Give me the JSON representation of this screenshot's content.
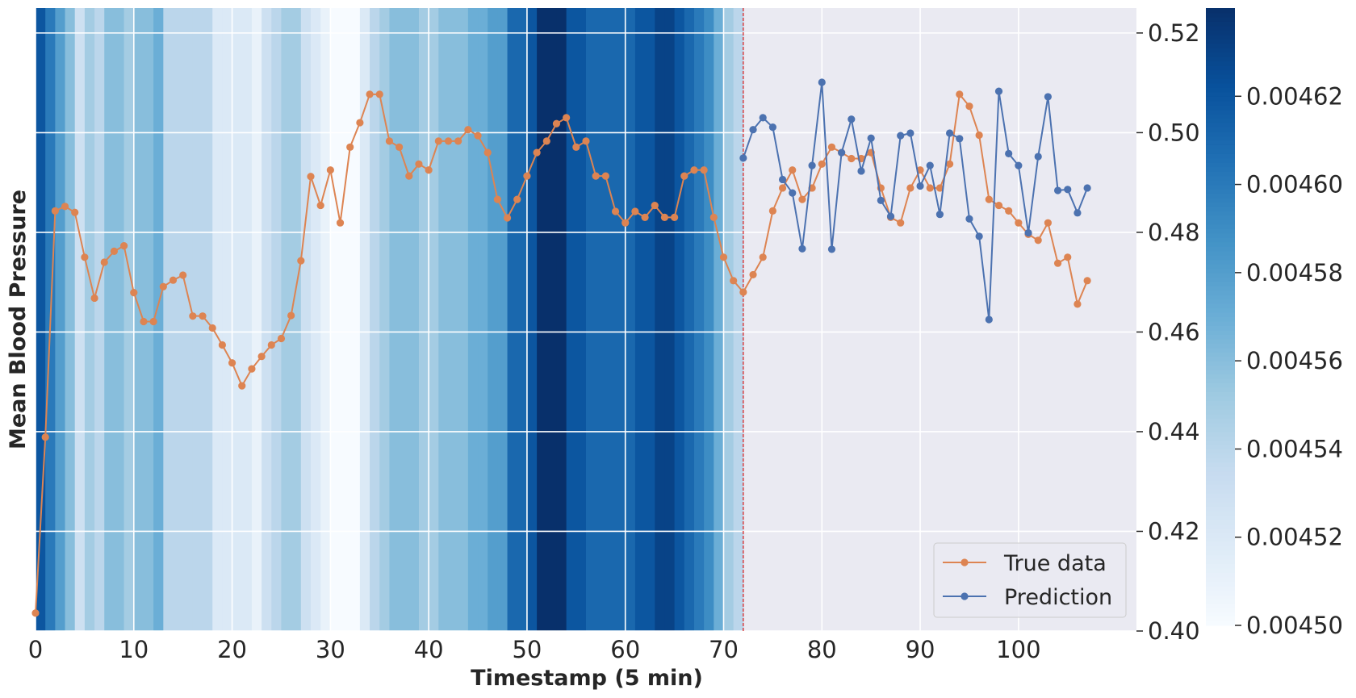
{
  "chart_data": {
    "type": "line",
    "xlabel": "Timestamp (5 min)",
    "ylabel": "Mean Blood Pressure",
    "xlim": [
      0,
      112
    ],
    "ylim": [
      0.4,
      0.525
    ],
    "xticks": [
      0,
      10,
      20,
      30,
      40,
      50,
      60,
      70,
      80,
      90,
      100
    ],
    "yticks": [
      0.4,
      0.42,
      0.44,
      0.46,
      0.48,
      0.5,
      0.52
    ],
    "ytick_labels": [
      "0.40",
      "0.42",
      "0.44",
      "0.46",
      "0.48",
      "0.50",
      "0.52"
    ],
    "vline_x": 72,
    "legend_position": "lower-right",
    "grid": true,
    "colors": {
      "true_data": "#dd8452",
      "prediction": "#4c72b0",
      "vline": "#d62728",
      "axes_bg": "#eaeaf2"
    },
    "series": [
      {
        "name": "True data",
        "x": [
          0,
          1,
          2,
          3,
          4,
          5,
          6,
          7,
          8,
          9,
          10,
          11,
          12,
          13,
          14,
          15,
          16,
          17,
          18,
          19,
          20,
          21,
          22,
          23,
          24,
          25,
          26,
          27,
          28,
          29,
          30,
          31,
          32,
          33,
          34,
          35,
          36,
          37,
          38,
          39,
          40,
          41,
          42,
          43,
          44,
          45,
          46,
          47,
          48,
          49,
          50,
          51,
          52,
          53,
          54,
          55,
          56,
          57,
          58,
          59,
          60,
          61,
          62,
          63,
          64,
          65,
          66,
          67,
          68,
          69,
          70,
          71,
          72,
          73,
          74,
          75,
          76,
          77,
          78,
          79,
          80,
          81,
          82,
          83,
          84,
          85,
          86,
          87,
          88,
          89,
          90,
          91,
          92,
          93,
          94,
          95,
          96,
          97,
          98,
          99,
          100,
          101,
          102,
          103,
          104,
          105,
          106,
          107
        ],
        "values": [
          0.4036,
          0.4389,
          0.4843,
          0.4852,
          0.484,
          0.475,
          0.4668,
          0.474,
          0.4762,
          0.4773,
          0.4679,
          0.4621,
          0.4621,
          0.4691,
          0.4704,
          0.4714,
          0.4632,
          0.4632,
          0.4608,
          0.4574,
          0.4538,
          0.4492,
          0.4526,
          0.4551,
          0.4574,
          0.4587,
          0.4633,
          0.4743,
          0.4912,
          0.4854,
          0.4925,
          0.4819,
          0.4971,
          0.502,
          0.5077,
          0.5077,
          0.4983,
          0.4971,
          0.4913,
          0.4937,
          0.4925,
          0.4983,
          0.4983,
          0.4983,
          0.5006,
          0.4994,
          0.496,
          0.4866,
          0.4829,
          0.4866,
          0.4913,
          0.496,
          0.4983,
          0.5018,
          0.503,
          0.4971,
          0.4983,
          0.4913,
          0.4913,
          0.4842,
          0.4819,
          0.4842,
          0.483,
          0.4854,
          0.483,
          0.483,
          0.4913,
          0.4925,
          0.4925,
          0.483,
          0.475,
          0.4703,
          0.468,
          0.4715,
          0.475,
          0.4843,
          0.4889,
          0.4925,
          0.4866,
          0.4889,
          0.4937,
          0.4971,
          0.496,
          0.4948,
          0.4948,
          0.496,
          0.4889,
          0.483,
          0.4819,
          0.4889,
          0.4925,
          0.4889,
          0.4889,
          0.4937,
          0.5077,
          0.5053,
          0.4995,
          0.4866,
          0.4854,
          0.4843,
          0.4819,
          0.4796,
          0.4784,
          0.4819,
          0.4738,
          0.475,
          0.4656,
          0.4703
        ]
      },
      {
        "name": "Prediction",
        "x": [
          72,
          73,
          74,
          75,
          76,
          77,
          78,
          79,
          80,
          81,
          82,
          83,
          84,
          85,
          86,
          87,
          88,
          89,
          90,
          91,
          92,
          93,
          94,
          95,
          96,
          97,
          98,
          99,
          100,
          101,
          102,
          103,
          104,
          105,
          106,
          107
        ],
        "values": [
          0.4949,
          0.5006,
          0.503,
          0.5011,
          0.4906,
          0.4879,
          0.4767,
          0.4934,
          0.5101,
          0.4766,
          0.496,
          0.5027,
          0.4923,
          0.4989,
          0.4864,
          0.4832,
          0.4994,
          0.4999,
          0.4893,
          0.4934,
          0.4836,
          0.4999,
          0.4988,
          0.4827,
          0.4792,
          0.4625,
          0.5083,
          0.4958,
          0.4934,
          0.4799,
          0.4952,
          0.5072,
          0.4884,
          0.4886,
          0.4839,
          0.4889
        ]
      }
    ],
    "heatmap": {
      "cells_per_unit": 1,
      "range": [
        0.0045,
        0.00464
      ],
      "cmap": "Blues",
      "values": [
        0.00462,
        0.0046,
        0.00458,
        0.00456,
        0.00453,
        0.00455,
        0.00454,
        0.00456,
        0.00456,
        0.00455,
        0.00456,
        0.00456,
        0.00457,
        0.00454,
        0.00454,
        0.00454,
        0.00454,
        0.00454,
        0.00452,
        0.00452,
        0.00452,
        0.00452,
        0.00451,
        0.00453,
        0.00454,
        0.00455,
        0.00455,
        0.00453,
        0.00452,
        0.00451,
        0.0045,
        0.0045,
        0.0045,
        0.00452,
        0.00454,
        0.00455,
        0.00456,
        0.00456,
        0.00456,
        0.00455,
        0.00455,
        0.00456,
        0.00456,
        0.00456,
        0.00457,
        0.00457,
        0.00458,
        0.00458,
        0.00461,
        0.00461,
        0.00462,
        0.00464,
        0.00464,
        0.00464,
        0.00462,
        0.00462,
        0.00461,
        0.00461,
        0.00461,
        0.00461,
        0.00461,
        0.00462,
        0.00462,
        0.00463,
        0.00463,
        0.00462,
        0.00461,
        0.0046,
        0.00459,
        0.00457,
        0.00455,
        0.00454
      ],
      "colorbar_ticks": [
        0.0045,
        0.00452,
        0.00454,
        0.00456,
        0.00458,
        0.0046,
        0.00462
      ],
      "colorbar_tick_labels": [
        "0.00450",
        "0.00452",
        "0.00454",
        "0.00456",
        "0.00458",
        "0.00460",
        "0.00462"
      ]
    }
  }
}
